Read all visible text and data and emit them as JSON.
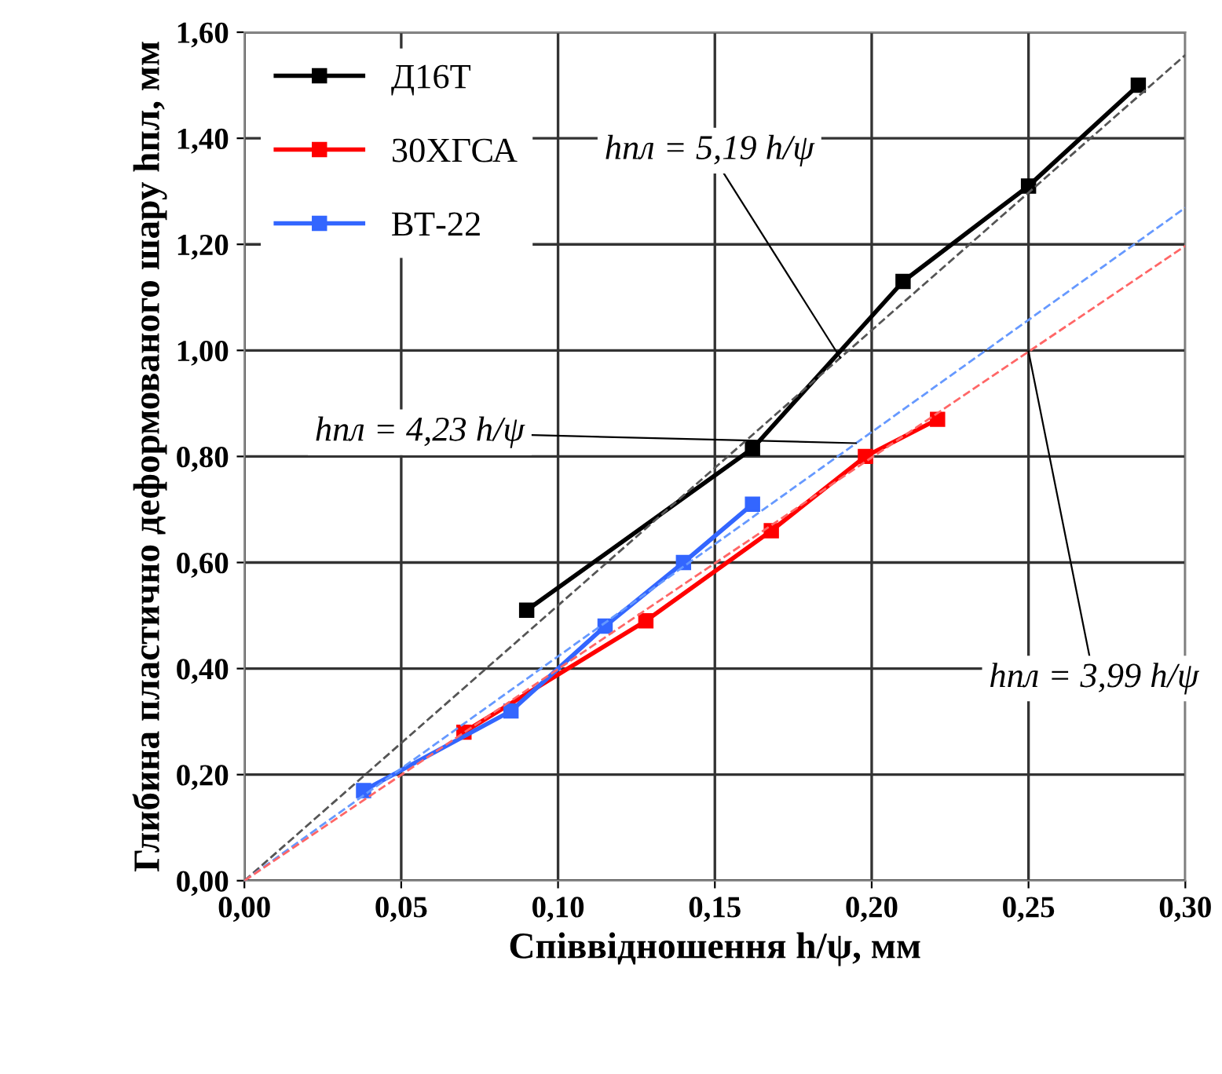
{
  "chart_data": {
    "type": "line",
    "xlabel": "Співвідношення h/ψ, мм",
    "ylabel": "Глибина пластично деформованого шару hпл, мм",
    "xlim": [
      0,
      0.3
    ],
    "xticks": [
      {
        "value": 0,
        "label": "0,00"
      },
      {
        "value": 0.05,
        "label": "0,05"
      },
      {
        "value": 0.1,
        "label": "0,10"
      },
      {
        "value": 0.15,
        "label": "0,15"
      },
      {
        "value": 0.2,
        "label": "0,20"
      },
      {
        "value": 0.25,
        "label": "0,25"
      },
      {
        "value": 0.3,
        "label": "0,30"
      }
    ],
    "ylim": [
      0,
      1.6
    ],
    "yticks": [
      {
        "value": 0,
        "label": "0,00"
      },
      {
        "value": 0.2,
        "label": "0,20"
      },
      {
        "value": 0.4,
        "label": "0,40"
      },
      {
        "value": 0.6,
        "label": "0,60"
      },
      {
        "value": 0.8,
        "label": "0,80"
      },
      {
        "value": 1.0,
        "label": "1,00"
      },
      {
        "value": 1.2,
        "label": "1,20"
      },
      {
        "value": 1.4,
        "label": "1,40"
      },
      {
        "value": 1.6,
        "label": "1,60"
      }
    ],
    "grid": true,
    "legend": "top left",
    "marker": "square",
    "line_style": "solid",
    "series": [
      {
        "name": "Д16Т",
        "color": "#000000",
        "x": [
          0.09,
          0.162,
          0.21,
          0.25,
          0.285
        ],
        "values": [
          0.51,
          0.815,
          1.13,
          1.31,
          1.5
        ]
      },
      {
        "name": "30ХГСА",
        "color": "#ff0000",
        "x": [
          0.07,
          0.128,
          0.168,
          0.198,
          0.221
        ],
        "values": [
          0.28,
          0.49,
          0.66,
          0.8,
          0.87
        ]
      },
      {
        "name": "ВТ-22",
        "color": "#3366ff",
        "x": [
          0.038,
          0.085,
          0.115,
          0.14,
          0.162
        ],
        "values": [
          0.17,
          0.32,
          0.48,
          0.6,
          0.71
        ]
      },
      {
        "color": "#555555",
        "x": [
          0,
          0.3
        ],
        "values": [
          0,
          1.557
        ],
        "marker": "none",
        "line_style": "dashed"
      },
      {
        "color": "#6699ff",
        "x": [
          0,
          0.3
        ],
        "values": [
          0,
          1.269
        ],
        "marker": "none",
        "line_style": "dashed"
      },
      {
        "color": "#ff6666",
        "x": [
          0,
          0.3
        ],
        "values": [
          0,
          1.197
        ],
        "marker": "none",
        "line_style": "dashed"
      }
    ],
    "annotations": [
      {
        "text": "hпл = 5,19 h/ψ",
        "x": 0.19,
        "y": 0.986
      },
      {
        "text": "hпл = 4,23 h/ψ",
        "x": 0.195,
        "y": 0.825
      },
      {
        "text": "hпл = 3,99 h/ψ",
        "x": 0.25,
        "y": 0.998
      }
    ]
  }
}
